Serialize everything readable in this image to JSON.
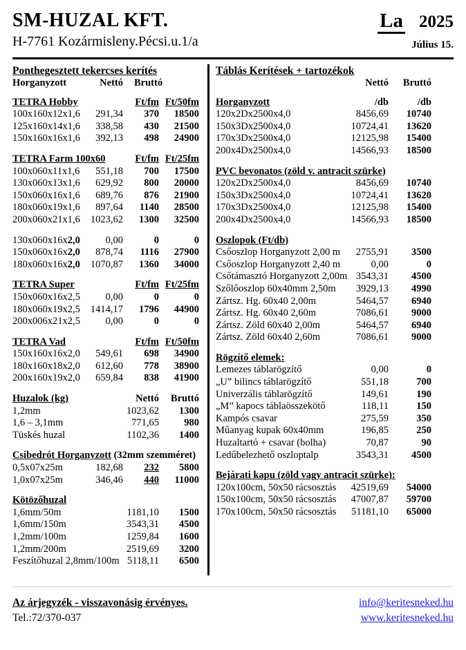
{
  "header": {
    "company": "SM-HUZAL  KFT.",
    "address": "H-7761 Kozármisleny.Pécsi.u.1/a",
    "code": "La",
    "year": "2025",
    "date": "Július 15."
  },
  "left": {
    "title": "Ponthegesztett tekercses kerítés",
    "col_label": "Horganyzott",
    "col_netto": "Nettó",
    "col_brutto": "Bruttó",
    "groups": [
      {
        "name": "TETRA Hobby",
        "c3h": "Ft/fm",
        "c4h": "Ft/50fm",
        "cols_underline": true,
        "rows": [
          [
            "100x160x12x1,6",
            "",
            "291,34",
            "370",
            "18500"
          ],
          [
            "125x160x14x1,6",
            "",
            "338,58",
            "430",
            "21500"
          ],
          [
            "150x160x16x1,6",
            "",
            "392,13",
            "498",
            "24900"
          ]
        ]
      },
      {
        "name": "TETRA Farm 100x60",
        "c3h": "Ft/fm",
        "c4h": "Ft/25fm",
        "cols_underline": true,
        "rows": [
          [
            "100x060x11x1,6",
            "",
            "551,18",
            "700",
            "17500"
          ],
          [
            "130x060x13x1,6",
            "",
            "629,92",
            "800",
            "20000"
          ],
          [
            "150x060x16x1,6",
            "",
            "689,76",
            "876",
            "21900"
          ],
          [
            "180x060x19x1,6",
            "",
            "897,64",
            "1140",
            "28500"
          ],
          [
            "200x060x21x1,6",
            "",
            "1023,62",
            "1300",
            "32500"
          ]
        ]
      },
      {
        "name": "",
        "rows": [
          [
            "130x060x16x",
            "2,0",
            "0,00",
            "0",
            "0"
          ],
          [
            "150x060x16x",
            "2,0",
            "878,74",
            "1116",
            "27900"
          ],
          [
            "180x060x16x",
            "2,0",
            "1070,87",
            "1360",
            "34000"
          ]
        ]
      },
      {
        "name": "TETRA Super",
        "c3h": "Ft/fm",
        "c4h": "Ft/25fm",
        "cols_underline": true,
        "rows": [
          [
            "150x060x16x2,5",
            "",
            "0,00",
            "0",
            "0"
          ],
          [
            "180x060x19x2,5",
            "",
            "1414,17",
            "1796",
            "44900"
          ],
          [
            "200x006x21x2,5",
            "",
            "0,00",
            "0",
            "0"
          ]
        ]
      },
      {
        "name": "TETRA Vad",
        "c3h": "Ft/fm",
        "c4h": "Ft/50fm",
        "cols_underline": true,
        "rows": [
          [
            "150x160x16x2,0",
            "",
            "549,61",
            "698",
            "34900"
          ],
          [
            "180x160x18x2,0",
            "",
            "612,60",
            "778",
            "38900"
          ],
          [
            "200x160x19x2,0",
            "",
            "659,84",
            "838",
            "41900"
          ]
        ]
      },
      {
        "name": "Huzalok (kg)",
        "c3h": "Nettó",
        "c4h": "Bruttó",
        "cols_underline": false,
        "c3_bold": false,
        "rows": [
          [
            "1,2mm",
            "",
            "",
            "1023,62",
            "1300"
          ],
          [
            "1,6 – 3,1mm",
            "",
            "",
            "771,65",
            "980"
          ],
          [
            "Tüskés huzal",
            "",
            "",
            "1102,36",
            "1400"
          ]
        ]
      },
      {
        "name": "Csibedrót Horganyzott",
        "suffix": "  (32mm szemméret)",
        "c3_underline": true,
        "rows": [
          [
            "0,5x07x25m",
            "",
            "182,68",
            "232",
            "5800"
          ],
          [
            "1,0x07x25m",
            "",
            "346,46",
            "440",
            "11000"
          ]
        ]
      },
      {
        "name": "Kötözőhuzal",
        "c3_bold": false,
        "rows": [
          [
            "1,6mm/50m",
            "",
            "",
            "1181,10",
            "1500"
          ],
          [
            "1,6mm/150m",
            "",
            "",
            "3543,31",
            "4500"
          ],
          [
            "1,2mm/100m",
            "",
            "",
            "1259,84",
            "1600"
          ],
          [
            "1,2mm/200m",
            "",
            "",
            "2519,69",
            "3200"
          ],
          [
            "Feszítőhuzal 2,8mm/100m",
            "",
            "",
            "5118,11",
            "6500"
          ]
        ]
      }
    ]
  },
  "right": {
    "title": "Táblás Kerítések + tartozékok",
    "col_netto": "Nettó",
    "col_brutto": "Bruttó",
    "groups": [
      {
        "name": "Horganyzott",
        "c2h": "/db",
        "c3h": "/db",
        "rows": [
          [
            "120x2Dx2500x4,0",
            "8456,69",
            "10740"
          ],
          [
            "150x3Dx2500x4,0",
            "10724,41",
            "13620"
          ],
          [
            "170x3Dx2500x4,0",
            "12125,98",
            "15400"
          ],
          [
            "200x4Dx2500x4,0",
            "14566,93",
            "18500"
          ]
        ]
      },
      {
        "name": "PVC bevonatos (zöld v. antracit szürke)",
        "rows": [
          [
            "120x2Dx2500x4,0",
            "8456,69",
            "10740"
          ],
          [
            "150x3Dx2500x4,0",
            "10724,41",
            "13620"
          ],
          [
            "170x3Dx2500x4,0",
            "12125,98",
            "15400"
          ],
          [
            "200x4Dx2500x4,0",
            "14566,93",
            "18500"
          ]
        ]
      },
      {
        "name": "Oszlopok (Ft/db)",
        "rows": [
          [
            "Csőoszlop Horganyzott 2,00 m",
            "2755,91",
            "3500"
          ],
          [
            "Csőoszlop Horganyzott 2,40 m",
            "0,00",
            "0"
          ],
          [
            "Csőtámasztó Horganyzott 2,00m",
            "3543,31",
            "4500"
          ],
          [
            "Szőlőoszlop 60x40mm 2,50m",
            "3929,13",
            "4990"
          ],
          [
            "Zártsz. Hg. 60x40 2,00m",
            "5464,57",
            "6940"
          ],
          [
            "Zártsz. Hg. 60x40 2,60m",
            "7086,61",
            "9000"
          ],
          [
            "Zártsz. Zöld 60x40 2,00m",
            "5464,57",
            "6940"
          ],
          [
            "Zártsz. Zöld 60x40 2,60m",
            "7086,61",
            "9000"
          ]
        ]
      },
      {
        "name": "Rögzítő elemek:",
        "rows": [
          [
            "Lemezes táblarögzítő",
            "0,00",
            "0"
          ],
          [
            "„U” bilincs táblarögzítő",
            "551,18",
            "700"
          ],
          [
            "Univerzális táblarögzítő",
            "149,61",
            "190"
          ],
          [
            "„M” kapocs táblaösszekötő",
            "118,11",
            "150"
          ],
          [
            "Kampós csavar",
            "275,59",
            "350"
          ],
          [
            "Műanyag kupak 60x40mm",
            "196,85",
            "250"
          ],
          [
            "Huzaltartó + csavar (bolha)",
            "70,87",
            "90"
          ],
          [
            "Ledűbelezhető oszloptalp",
            "3543,31",
            "4500"
          ]
        ]
      },
      {
        "name": "Bejárati kapu (zöld vagy antracit szürke):",
        "rows": [
          [
            "120x100cm, 50x50 rácsosztás",
            "42519,69",
            "54000"
          ],
          [
            "150x100cm, 50x50 rácsosztás",
            "47007,87",
            "59700"
          ],
          [
            "170x100cm, 50x50 rácsosztás",
            "51181,10",
            "65000"
          ]
        ]
      }
    ]
  },
  "footer": {
    "note": "Az árjegyzék - visszavonásig érvényes.",
    "tel": "Tel.:72/370-037",
    "email": "info@keritesneked.hu",
    "web": "www.keritesneked.hu"
  }
}
